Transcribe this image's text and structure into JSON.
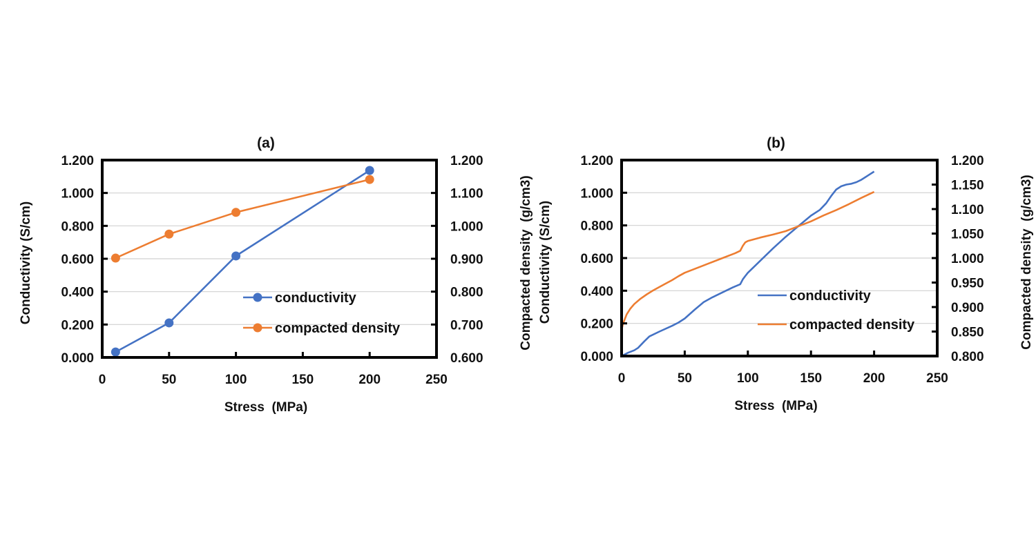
{
  "colors": {
    "conductivity": "#4472C4",
    "compacted_density": "#ED7D31"
  },
  "chart_data": [
    {
      "type": "line",
      "panel": "a",
      "title": "(a)",
      "xlabel": "Stress  (MPa)",
      "ylabel": "Conductivity (S/cm)",
      "y2label": "Compacted density  (g/cm3)",
      "xlim": [
        0,
        250
      ],
      "ylim": [
        0,
        1.2
      ],
      "y2lim": [
        0.6,
        1.2
      ],
      "xticks": [
        "0",
        "50",
        "100",
        "150",
        "200",
        "250"
      ],
      "yticks": [
        "0.000",
        "0.200",
        "0.400",
        "0.600",
        "0.800",
        "1.000",
        "1.200"
      ],
      "y2ticks": [
        "0.600",
        "0.700",
        "0.800",
        "0.900",
        "1.000",
        "1.100",
        "1.200"
      ],
      "grid": true,
      "markers": true,
      "legend_position": "bottom-right",
      "series": [
        {
          "name": "conductivity",
          "axis": "left",
          "x": [
            10,
            50,
            100,
            200
          ],
          "y": [
            0.033,
            0.21,
            0.617,
            1.137
          ]
        },
        {
          "name": "compacted density",
          "axis": "right",
          "x": [
            10,
            50,
            100,
            200
          ],
          "y": [
            0.902,
            0.975,
            1.041,
            1.141
          ]
        }
      ]
    },
    {
      "type": "line",
      "panel": "b",
      "title": "(b)",
      "xlabel": "Stress  (MPa)",
      "ylabel": "Conductivity (S/cm)",
      "y2label": "Compacted density  (g/cm3)",
      "xlim": [
        0,
        250
      ],
      "ylim": [
        0,
        1.2
      ],
      "y2lim": [
        0.8,
        1.2
      ],
      "xticks": [
        "0",
        "50",
        "100",
        "150",
        "200",
        "250"
      ],
      "yticks": [
        "0.000",
        "0.200",
        "0.400",
        "0.600",
        "0.800",
        "1.000",
        "1.200"
      ],
      "y2ticks": [
        "0.800",
        "0.850",
        "0.900",
        "0.950",
        "1.000",
        "1.050",
        "1.100",
        "1.150",
        "1.200"
      ],
      "grid": true,
      "markers": false,
      "legend_position": "bottom-right",
      "series": [
        {
          "name": "conductivity",
          "axis": "left",
          "x": [
            0,
            5,
            10,
            13,
            18,
            22,
            30,
            40,
            45,
            50,
            58,
            65,
            72,
            80,
            88,
            94,
            96,
            98,
            100,
            110,
            120,
            130,
            140,
            150,
            157,
            162,
            166,
            170,
            174,
            178,
            182,
            186,
            190,
            193,
            196,
            200
          ],
          "y": [
            0.0,
            0.02,
            0.035,
            0.05,
            0.09,
            0.12,
            0.15,
            0.185,
            0.205,
            0.23,
            0.285,
            0.33,
            0.36,
            0.39,
            0.42,
            0.44,
            0.47,
            0.49,
            0.51,
            0.585,
            0.66,
            0.73,
            0.795,
            0.86,
            0.895,
            0.935,
            0.98,
            1.02,
            1.04,
            1.05,
            1.055,
            1.065,
            1.08,
            1.095,
            1.11,
            1.13
          ]
        },
        {
          "name": "compacted density",
          "axis": "right",
          "x": [
            0,
            1,
            2,
            4,
            7,
            10,
            15,
            20,
            25,
            30,
            35,
            40,
            45,
            50,
            60,
            70,
            80,
            90,
            94,
            96,
            98,
            100,
            110,
            120,
            130,
            140,
            150,
            160,
            170,
            180,
            190,
            200
          ],
          "y": [
            0.853,
            0.865,
            0.872,
            0.885,
            0.897,
            0.906,
            0.917,
            0.926,
            0.934,
            0.941,
            0.948,
            0.955,
            0.963,
            0.97,
            0.98,
            0.99,
            1.0,
            1.01,
            1.015,
            1.025,
            1.032,
            1.035,
            1.042,
            1.048,
            1.055,
            1.065,
            1.075,
            1.087,
            1.098,
            1.11,
            1.123,
            1.135
          ]
        }
      ]
    }
  ]
}
